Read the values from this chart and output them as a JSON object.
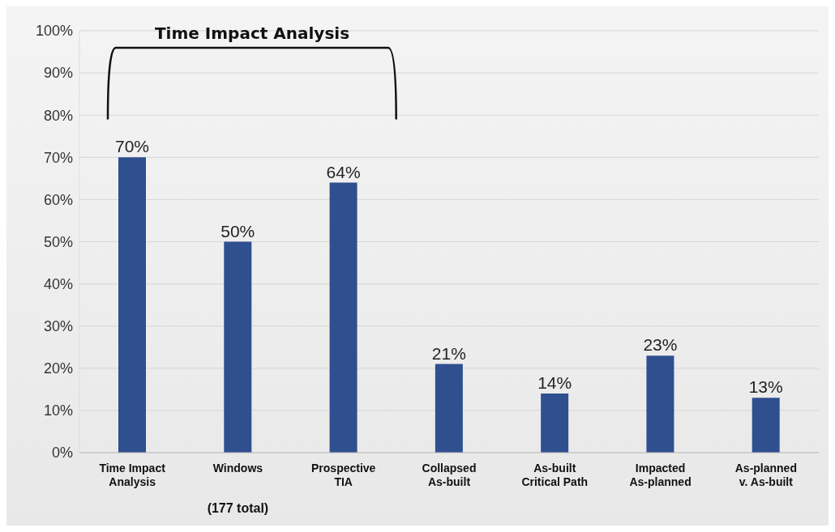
{
  "chart_data": {
    "type": "bar",
    "categories": [
      "Time Impact\nAnalysis",
      "Windows",
      "Prospective\nTIA",
      "Collapsed\nAs-built",
      "As-built\nCritical Path",
      "Impacted\nAs-planned",
      "As-planned\nv. As-built"
    ],
    "values": [
      70,
      50,
      64,
      21,
      14,
      23,
      13
    ],
    "value_labels": [
      "70%",
      "50%",
      "64%",
      "21%",
      "14%",
      "23%",
      "13%"
    ],
    "color": "#2f4f8f",
    "ylim": [
      0,
      100
    ],
    "yticks": [
      {
        "value": 0,
        "label": "0%"
      },
      {
        "value": 10,
        "label": "10%"
      },
      {
        "value": 20,
        "label": "20%"
      },
      {
        "value": 30,
        "label": "30%"
      },
      {
        "value": 40,
        "label": "40%"
      },
      {
        "value": 50,
        "label": "50%"
      },
      {
        "value": 60,
        "label": "60%"
      },
      {
        "value": 70,
        "label": "70%"
      },
      {
        "value": 80,
        "label": "80%"
      },
      {
        "value": 90,
        "label": "90%"
      },
      {
        "value": 100,
        "label": "100%"
      }
    ],
    "grid": "y",
    "legend": false,
    "annotations": [
      "Time Impact Analysis",
      "(177 total)"
    ]
  }
}
